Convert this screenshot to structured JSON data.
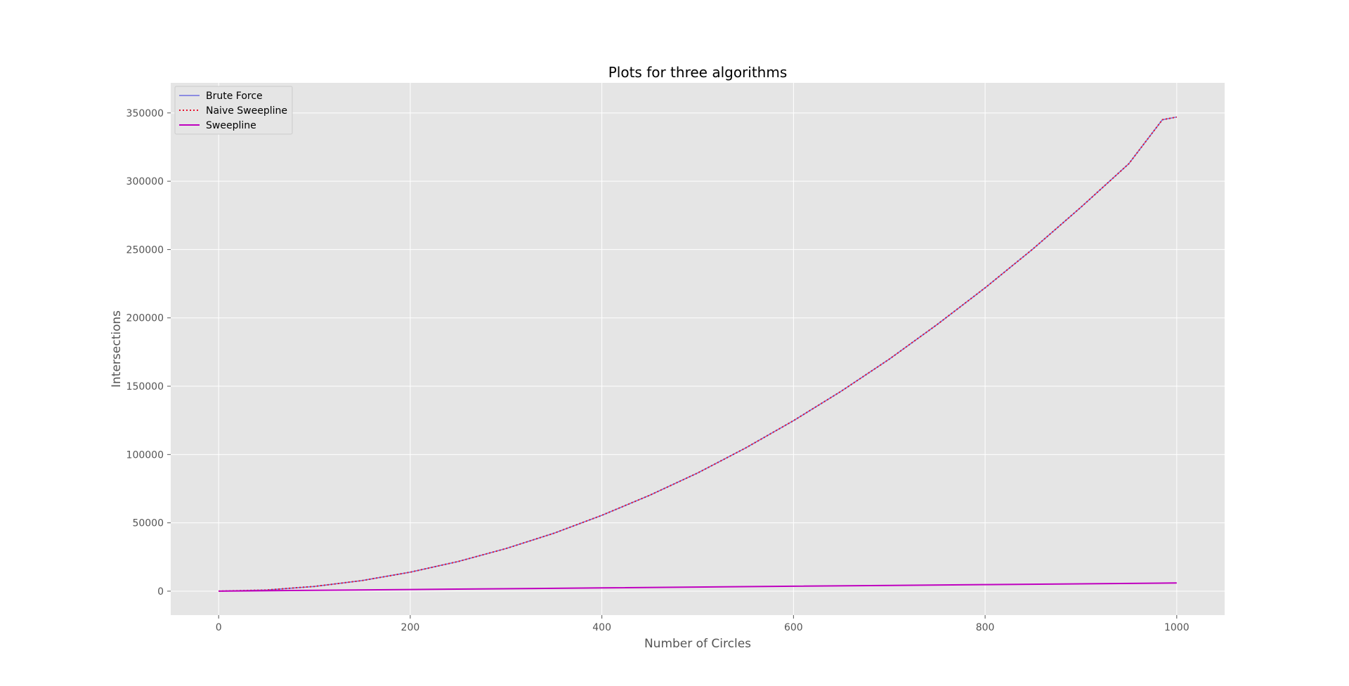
{
  "chart_data": {
    "type": "line",
    "title": "Plots for three algorithms",
    "xlabel": "Number of Circles",
    "ylabel": "Intersections",
    "xlim": [
      -50,
      1050
    ],
    "ylim": [
      -17500,
      372000
    ],
    "xticks": [
      0,
      200,
      400,
      600,
      800,
      1000
    ],
    "yticks": [
      0,
      50000,
      100000,
      150000,
      200000,
      250000,
      300000,
      350000
    ],
    "grid": true,
    "legend_position": "upper-left",
    "series": [
      {
        "name": "Brute Force",
        "color": "#6f6fe0",
        "style": "solid",
        "x": [
          0,
          50,
          100,
          150,
          200,
          250,
          300,
          350,
          400,
          450,
          500,
          550,
          600,
          650,
          700,
          750,
          800,
          850,
          900,
          950,
          985,
          1000
        ],
        "y": [
          0,
          870,
          3450,
          7800,
          13900,
          21700,
          31200,
          42400,
          55500,
          70200,
          86500,
          104800,
          124800,
          146400,
          169800,
          195200,
          222000,
          250500,
          281000,
          312800,
          345000,
          347000
        ]
      },
      {
        "name": "Naive Sweepline",
        "color": "#e8112d",
        "style": "dotted",
        "x": [
          0,
          50,
          100,
          150,
          200,
          250,
          300,
          350,
          400,
          450,
          500,
          550,
          600,
          650,
          700,
          750,
          800,
          850,
          900,
          950,
          985,
          1000
        ],
        "y": [
          0,
          870,
          3450,
          7800,
          13900,
          21700,
          31200,
          42400,
          55500,
          70200,
          86500,
          104800,
          124800,
          146400,
          169800,
          195200,
          222000,
          250500,
          281000,
          312800,
          345000,
          347000
        ]
      },
      {
        "name": "Sweepline",
        "color": "#bf00bf",
        "style": "solid",
        "x": [
          0,
          200,
          400,
          600,
          800,
          1000
        ],
        "y": [
          0,
          1200,
          2400,
          3600,
          4800,
          6000
        ]
      }
    ]
  }
}
